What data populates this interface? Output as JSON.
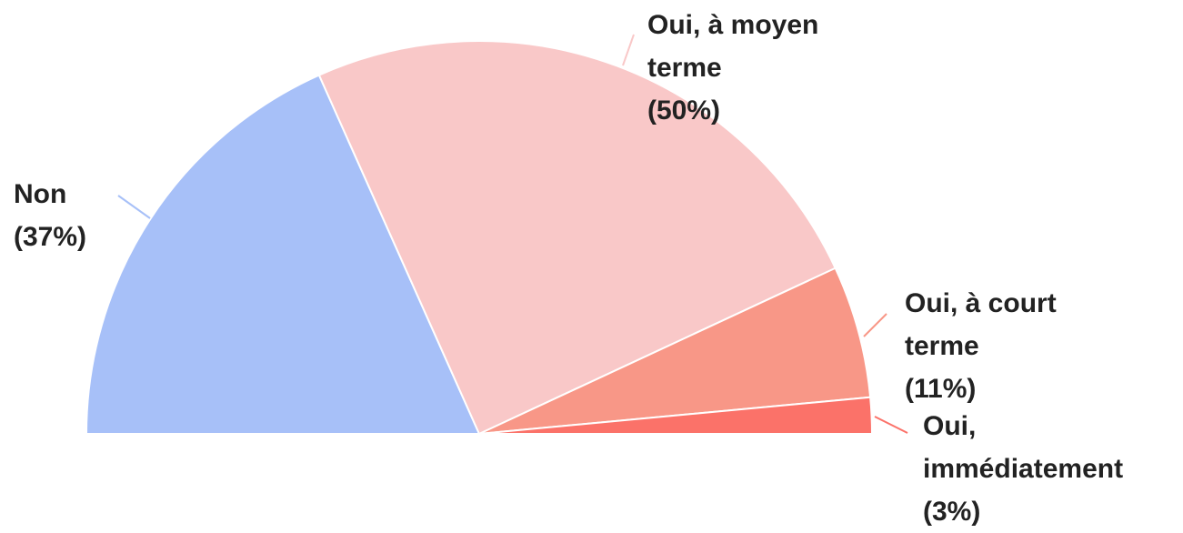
{
  "chart_data": {
    "type": "pie",
    "half": true,
    "categories": [
      "Non",
      "Oui, à moyen terme",
      "Oui, à court terme",
      "Oui, immédiatement"
    ],
    "values": [
      37,
      50,
      11,
      3
    ],
    "value_labels": [
      "(37%)",
      "(50%)",
      "(11%)",
      "(3%)"
    ],
    "colors": [
      "#a7c0f8",
      "#f9c8c8",
      "#f89787",
      "#fb7269"
    ]
  }
}
